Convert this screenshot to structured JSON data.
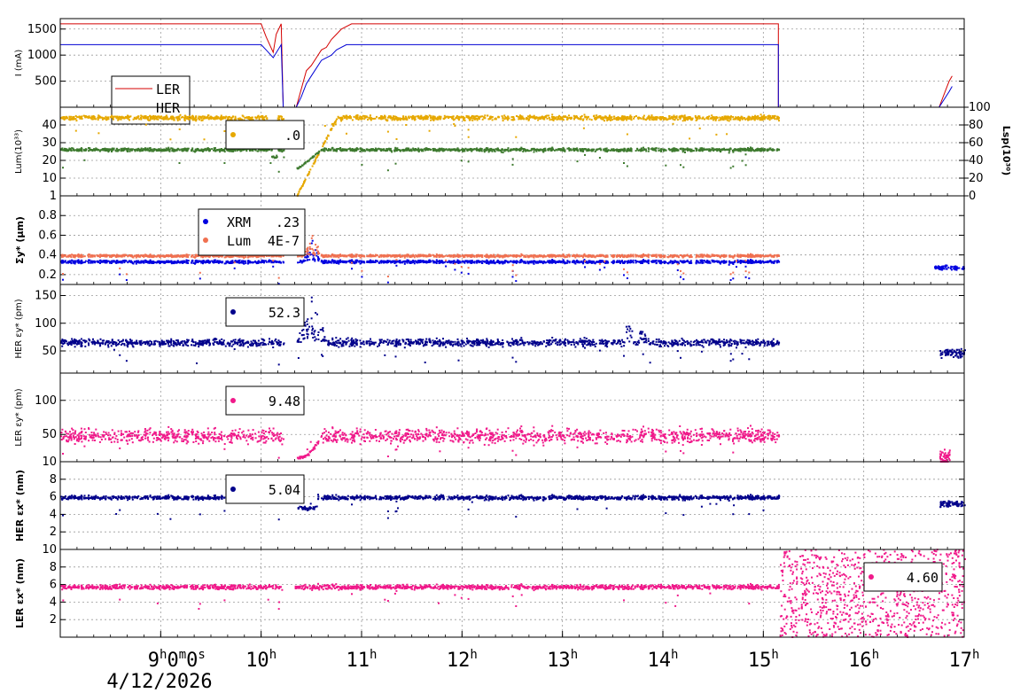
{
  "chart_data": {
    "type": "scatter",
    "x_axis": {
      "ticks": [
        {
          "hour": 9,
          "label": "9",
          "sup": "h",
          "extra": "0",
          "extra_sup": "m",
          "extra2": "0",
          "extra2_sup": "s"
        },
        {
          "hour": 10,
          "label": "10",
          "sup": "h"
        },
        {
          "hour": 11,
          "label": "11",
          "sup": "h"
        },
        {
          "hour": 12,
          "label": "12",
          "sup": "h"
        },
        {
          "hour": 13,
          "label": "13",
          "sup": "h"
        },
        {
          "hour": 14,
          "label": "14",
          "sup": "h"
        },
        {
          "hour": 15,
          "label": "15",
          "sup": "h"
        },
        {
          "hour": 16,
          "label": "16",
          "sup": "h"
        },
        {
          "hour": 17,
          "label": "17",
          "sup": "h"
        }
      ],
      "date_label": "4/12/2026",
      "range_hours": [
        8.0,
        17.0
      ]
    },
    "panels": [
      {
        "id": "current",
        "ylabel": "I (mA)",
        "ylim": [
          0,
          1700
        ],
        "yticks": [
          "500",
          "1000",
          "1500"
        ],
        "ytick_values": [
          500,
          1000,
          1500
        ],
        "legend": [
          {
            "name": "LER",
            "color": "#d40000"
          },
          {
            "name": "HER",
            "color": "#0000d4"
          }
        ],
        "series": [
          {
            "name": "LER",
            "color": "#d40000",
            "style": "line",
            "points": [
              [
                8.0,
                1600
              ],
              [
                10.0,
                1600
              ],
              [
                10.05,
                1350
              ],
              [
                10.12,
                1050
              ],
              [
                10.15,
                1400
              ],
              [
                10.2,
                1600
              ],
              [
                10.22,
                0
              ],
              [
                10.35,
                0
              ],
              [
                10.4,
                350
              ],
              [
                10.45,
                700
              ],
              [
                10.5,
                800
              ],
              [
                10.55,
                950
              ],
              [
                10.6,
                1100
              ],
              [
                10.65,
                1150
              ],
              [
                10.7,
                1300
              ],
              [
                10.75,
                1400
              ],
              [
                10.8,
                1500
              ],
              [
                10.9,
                1600
              ],
              [
                15.15,
                1600
              ],
              [
                15.15,
                0
              ],
              [
                16.75,
                0
              ],
              [
                16.85,
                500
              ],
              [
                16.88,
                600
              ]
            ]
          },
          {
            "name": "HER",
            "color": "#0000d4",
            "style": "line",
            "points": [
              [
                8.0,
                1200
              ],
              [
                10.0,
                1200
              ],
              [
                10.05,
                1100
              ],
              [
                10.12,
                950
              ],
              [
                10.2,
                1200
              ],
              [
                10.22,
                0
              ],
              [
                10.35,
                0
              ],
              [
                10.4,
                200
              ],
              [
                10.45,
                450
              ],
              [
                10.5,
                600
              ],
              [
                10.6,
                900
              ],
              [
                10.7,
                1000
              ],
              [
                10.75,
                1100
              ],
              [
                10.85,
                1200
              ],
              [
                15.15,
                1200
              ],
              [
                15.15,
                0
              ],
              [
                16.75,
                0
              ],
              [
                16.85,
                300
              ],
              [
                16.88,
                400
              ]
            ]
          }
        ]
      },
      {
        "id": "luminosity",
        "ylabel": "Lum(10³³)",
        "ylim": [
          0,
          50
        ],
        "yticks": [
          "10",
          "20",
          "30",
          "40"
        ],
        "ytick_values": [
          10,
          20,
          30,
          40
        ],
        "ylabel_right": "Lsp(10³⁰)",
        "yticks_right": [
          "0",
          "20",
          "40",
          "60",
          "80",
          "100"
        ],
        "legend_text": ".0",
        "legend_color": "#e6a800",
        "series": [
          {
            "name": "",
            "color": "#e6a800",
            "style": "dots",
            "level": 44,
            "noise": 1.0,
            "range": [
              8.0,
              15.15
            ],
            "gap": [
              10.22,
              10.35
            ],
            "dip": [
              [
                10.05,
                10.15,
                30
              ]
            ],
            "ramp": [
              10.35,
              10.75,
              0
            ]
          },
          {
            "name": "",
            "color": "#3d7a2e",
            "style": "dots",
            "level": 26,
            "noise": 0.7,
            "range": [
              8.0,
              15.15
            ],
            "gap": [
              10.22,
              10.35
            ],
            "dip": [
              [
                10.1,
                10.15,
                22
              ]
            ],
            "ramp": [
              10.35,
              10.6,
              15
            ]
          }
        ]
      },
      {
        "id": "sigma",
        "ylabel": "Σy* (μm)",
        "ylim": [
          0.1,
          1.0
        ],
        "yticks": [
          "0.2",
          "0.4",
          "0.6",
          "0.8",
          "1"
        ],
        "ytick_values": [
          0.2,
          0.4,
          0.6,
          0.8,
          1.0
        ],
        "legend": [
          {
            "name": "XRM",
            "value": ".23",
            "color": "#0000e0"
          },
          {
            "name": "Lum",
            "value": "4E-7",
            "color": "#f07050"
          }
        ],
        "series": [
          {
            "name": "XRM",
            "color": "#0000e0",
            "style": "dots",
            "level": 0.33,
            "noise": 0.012,
            "range": [
              8.0,
              15.15
            ],
            "gap": [
              10.22,
              10.35
            ],
            "spike": [
              10.4,
              10.6,
              0.55
            ],
            "tail": [
              16.7,
              17.0,
              0.27
            ]
          },
          {
            "name": "Lum",
            "color": "#f07050",
            "style": "dots",
            "level": 0.39,
            "noise": 0.01,
            "range": [
              8.0,
              15.15
            ],
            "gap": [
              10.22,
              10.35
            ],
            "spike": [
              10.4,
              10.6,
              0.6
            ]
          }
        ]
      },
      {
        "id": "her-emit-y",
        "ylabel": "HER εy* (pm)",
        "ylim": [
          10,
          170
        ],
        "yticks": [
          "50",
          "100",
          "150"
        ],
        "ytick_values": [
          50,
          100,
          150
        ],
        "legend_text": "52.3",
        "legend_color": "#00008b",
        "series": [
          {
            "name": "",
            "color": "#00008b",
            "style": "dots",
            "level": 65,
            "noise": 5,
            "range": [
              8.0,
              15.15
            ],
            "gap": [
              10.22,
              10.35
            ],
            "spike": [
              10.35,
              10.65,
              150
            ],
            "bumps": [
              [
                13.65,
                95
              ],
              [
                13.8,
                85
              ]
            ],
            "tail": [
              16.75,
              17.0,
              45
            ]
          }
        ]
      },
      {
        "id": "ler-emit-y",
        "ylabel": "LER εy* (pm)",
        "ylim": [
          10,
          140
        ],
        "yticks": [
          "10",
          "50",
          "100"
        ],
        "ytick_values": [
          10,
          50,
          100
        ],
        "legend_text": "9.48",
        "legend_color": "#f0198a",
        "series": [
          {
            "name": "",
            "color": "#f0198a",
            "style": "dots",
            "level": 48,
            "noise": 8,
            "range": [
              8.0,
              15.15
            ],
            "gap": [
              10.22,
              10.35
            ],
            "low": [
              10.35,
              10.6,
              15
            ],
            "tail": [
              16.75,
              16.85,
              14
            ]
          }
        ]
      },
      {
        "id": "her-emit-x",
        "ylabel": "HER εx* (nm)",
        "ylim": [
          0,
          10
        ],
        "yticks": [
          "2",
          "4",
          "6",
          "8"
        ],
        "ytick_values": [
          2,
          4,
          6,
          8
        ],
        "legend_text": "5.04",
        "legend_color": "#00008b",
        "series": [
          {
            "name": "",
            "color": "#00008b",
            "style": "dots",
            "level": 5.9,
            "noise": 0.18,
            "range": [
              8.0,
              15.15
            ],
            "gap": [
              10.22,
              10.32
            ],
            "dip": [
              [
                10.35,
                10.55,
                4.7
              ]
            ],
            "tail": [
              16.75,
              17.0,
              5.2
            ]
          }
        ]
      },
      {
        "id": "ler-emit-x",
        "ylabel": "LER εx* (nm)",
        "ylim": [
          0,
          10
        ],
        "yticks": [
          "2",
          "4",
          "6",
          "8",
          "10"
        ],
        "ytick_values": [
          2,
          4,
          6,
          8,
          10
        ],
        "legend_text": "4.60",
        "legend_color": "#f0198a",
        "series": [
          {
            "name": "",
            "color": "#f0198a",
            "style": "dots",
            "level": 5.7,
            "noise": 0.2,
            "range": [
              8.0,
              15.15
            ],
            "gap": [
              10.22,
              10.32
            ],
            "scatter_after": [
              15.15,
              17.0
            ]
          }
        ]
      }
    ]
  }
}
